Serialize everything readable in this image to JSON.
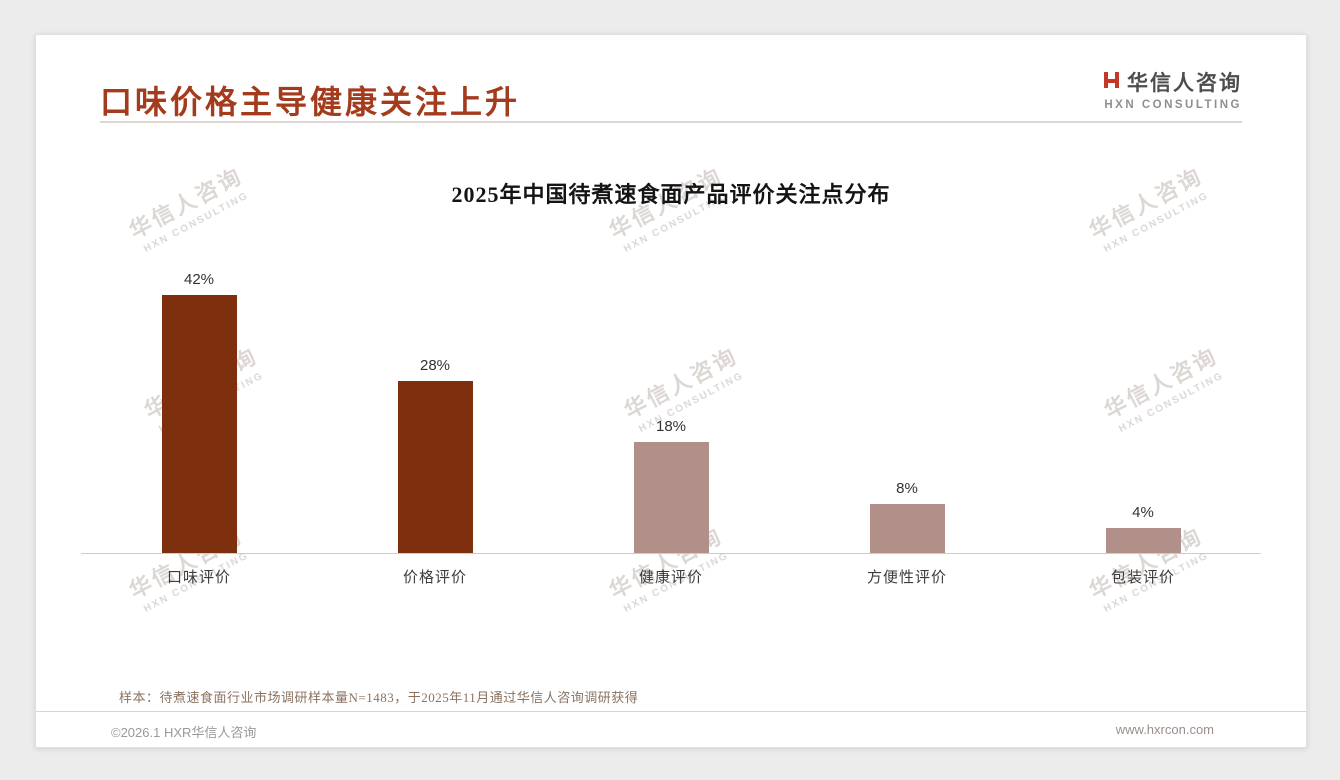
{
  "page": {
    "title": "口味价格主导健康关注上升",
    "sample_note": "样本：待煮速食面行业市场调研样本量N=1483，于2025年11月通过华信人咨询调研获得",
    "footer_left": "©2026.1 HXR华信人咨询",
    "footer_right": "www.hxrcon.com"
  },
  "logo": {
    "name": "华信人咨询",
    "subtitle": "HXN CONSULTING"
  },
  "watermark": {
    "line1": "华信人咨询",
    "line2": "HXN CONSULTING"
  },
  "colors": {
    "accent_red": "#a33b1c",
    "logo_icon_red": "#c23a26",
    "bar_dark": "#7d2f0e",
    "bar_light": "#b19089"
  },
  "chart_data": {
    "type": "bar",
    "title": "2025年中国待煮速食面产品评价关注点分布",
    "categories": [
      "口味评价",
      "价格评价",
      "健康评价",
      "方便性评价",
      "包装评价"
    ],
    "values": [
      42,
      28,
      18,
      8,
      4
    ],
    "value_labels": [
      "42%",
      "28%",
      "18%",
      "8%",
      "4%"
    ],
    "bar_colors": [
      "#7d2f0e",
      "#7d2f0e",
      "#b19089",
      "#b19089",
      "#b19089"
    ],
    "xlabel": "",
    "ylabel": "",
    "ylim": [
      0,
      45
    ],
    "grid": false,
    "legend": false,
    "baseline_axis": true
  }
}
